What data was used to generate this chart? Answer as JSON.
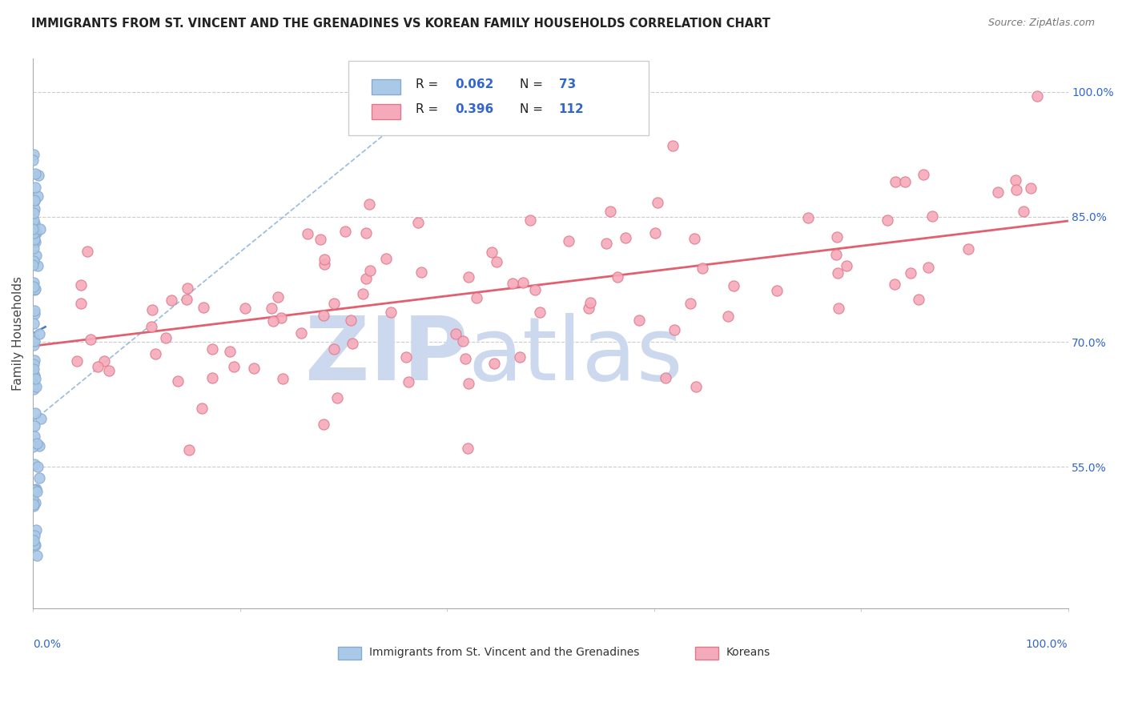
{
  "title": "IMMIGRANTS FROM ST. VINCENT AND THE GRENADINES VS KOREAN FAMILY HOUSEHOLDS CORRELATION CHART",
  "source": "Source: ZipAtlas.com",
  "ylabel": "Family Households",
  "right_yticks": [
    0.55,
    0.7,
    0.85,
    1.0
  ],
  "right_yticklabels": [
    "55.0%",
    "70.0%",
    "85.0%",
    "100.0%"
  ],
  "xlim": [
    0.0,
    1.0
  ],
  "ylim": [
    0.38,
    1.04
  ],
  "blue_R": 0.062,
  "blue_N": 73,
  "pink_R": 0.396,
  "pink_N": 112,
  "blue_color": "#aac8e8",
  "blue_edge": "#88aacc",
  "pink_color": "#f5aabb",
  "pink_edge": "#e07888",
  "blue_line_color": "#4477bb",
  "pink_line_color": "#e06070",
  "ref_line_color": "#99bbdd",
  "watermark_color": "#ccd8ee",
  "title_color": "#222222",
  "axis_label_color": "#3366cc",
  "legend_text_color": "#222222",
  "legend_value_color": "#3366cc",
  "pink_line_x0": 0.0,
  "pink_line_y0": 0.695,
  "pink_line_x1": 1.0,
  "pink_line_y1": 0.845,
  "ref_line_x0": 0.0,
  "ref_line_y0": 0.605,
  "ref_line_x1": 0.4,
  "ref_line_y1": 1.01
}
